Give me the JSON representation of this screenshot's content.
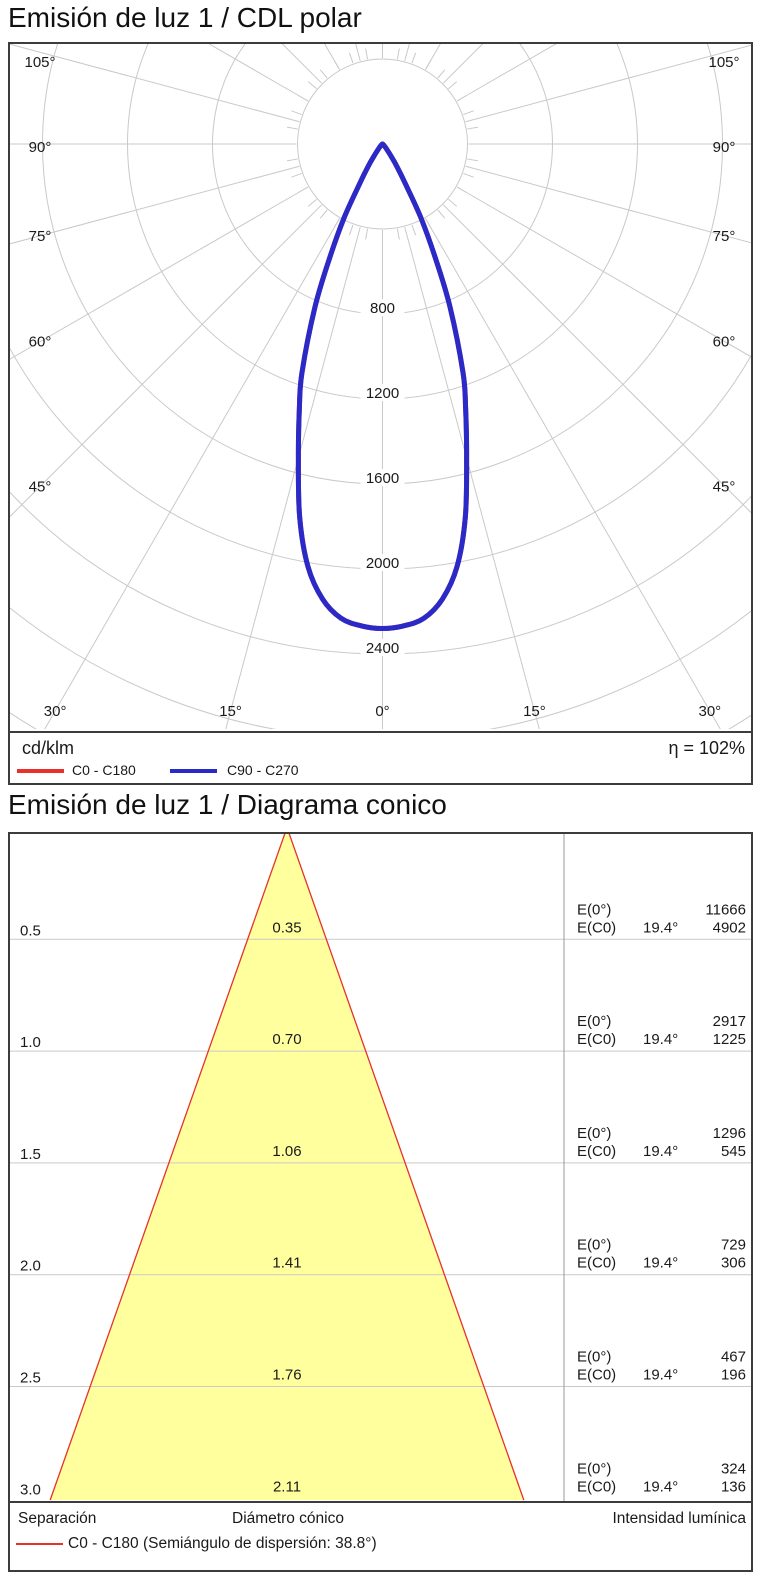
{
  "colors": {
    "c0_c180": "#e8312a",
    "c90_c270": "#2a2ac8",
    "cone_fill": "#ffff9e",
    "grid": "#c9c9c9",
    "border": "#3c3c3c",
    "text": "#1a1a1a"
  },
  "section1": {
    "title": "Emisión de luz 1 / CDL polar",
    "legend": {
      "unit": "cd/klm",
      "efficiency": "η = 102%",
      "series": [
        {
          "label": "C0 - C180",
          "color": "#e8312a"
        },
        {
          "label": "C90 - C270",
          "color": "#2a2ac8"
        }
      ]
    }
  },
  "section2": {
    "title": "Emisión de luz 1 / Diagrama conico",
    "footer": {
      "col_separation": "Separación",
      "col_diameter": "Diámetro cónico",
      "col_intensity": "Intensidad lumínica",
      "legend_label": "C0 - C180 (Semiángulo de dispersión: 38.8°)"
    }
  },
  "chart_data": [
    {
      "type": "line",
      "subtype": "polar-luminous-intensity",
      "title": "Emisión de luz 1 / CDL polar",
      "unit": "cd/klm",
      "efficiency_percent": 102,
      "ring_step_cd_klm": 400,
      "ring_labels": [
        800,
        1200,
        1600,
        2000,
        2400
      ],
      "angle_labels_side_deg": [
        105,
        90,
        75,
        60,
        45
      ],
      "angle_labels_bottom_deg": [
        30,
        15,
        0,
        15,
        30
      ],
      "spoke_step_deg": 15,
      "tick_step_deg": 10,
      "series": [
        {
          "name": "C0 - C180",
          "color": "#e8312a",
          "points_gamma_deg_vs_cd_klm": [
            [
              0,
              2280
            ],
            [
              2.5,
              2270
            ],
            [
              5,
              2240
            ],
            [
              7.5,
              2160
            ],
            [
              10,
              2020
            ],
            [
              12.5,
              1800
            ],
            [
              15,
              1530
            ],
            [
              17.5,
              1300
            ],
            [
              19.4,
              1140
            ],
            [
              22.5,
              830
            ],
            [
              25,
              580
            ],
            [
              27.5,
              390
            ],
            [
              30,
              215
            ],
            [
              32.5,
              130
            ],
            [
              35,
              75
            ],
            [
              40,
              28
            ],
            [
              45,
              12
            ],
            [
              50,
              6
            ],
            [
              60,
              2
            ],
            [
              75,
              1
            ],
            [
              90,
              0
            ]
          ]
        },
        {
          "name": "C90 - C270",
          "color": "#2a2ac8",
          "points_gamma_deg_vs_cd_klm": [
            [
              0,
              2280
            ],
            [
              2.5,
              2270
            ],
            [
              5,
              2240
            ],
            [
              7.5,
              2160
            ],
            [
              10,
              2020
            ],
            [
              12.5,
              1800
            ],
            [
              15,
              1530
            ],
            [
              17.5,
              1300
            ],
            [
              19.4,
              1140
            ],
            [
              22.5,
              830
            ],
            [
              25,
              580
            ],
            [
              27.5,
              390
            ],
            [
              30,
              215
            ],
            [
              32.5,
              130
            ],
            [
              35,
              75
            ],
            [
              40,
              28
            ],
            [
              45,
              12
            ],
            [
              50,
              6
            ],
            [
              60,
              2
            ],
            [
              75,
              1
            ],
            [
              90,
              0
            ]
          ]
        }
      ]
    },
    {
      "type": "area",
      "subtype": "cone-diagram",
      "title": "Emisión de luz 1 / Diagrama conico",
      "beam_half_angle_deg": 19.4,
      "full_beam_angle_deg": 38.8,
      "legend_label": "C0 - C180 (Semiángulo de dispersión: 38.8°)",
      "columns": {
        "separation": "Separación",
        "diameter": "Diámetro cónico",
        "intensity": "Intensidad lumínica"
      },
      "e_row_labels": {
        "line1": "E(0°)",
        "line2": "E(C0)",
        "angle": "19.4°"
      },
      "rows": [
        {
          "separation": "0.5",
          "diameter": "0.35",
          "e0": "11666",
          "ec0": "4902",
          "angle": "19.4°"
        },
        {
          "separation": "1.0",
          "diameter": "0.70",
          "e0": "2917",
          "ec0": "1225",
          "angle": "19.4°"
        },
        {
          "separation": "1.5",
          "diameter": "1.06",
          "e0": "1296",
          "ec0": "545",
          "angle": "19.4°"
        },
        {
          "separation": "2.0",
          "diameter": "1.41",
          "e0": "729",
          "ec0": "306",
          "angle": "19.4°"
        },
        {
          "separation": "2.5",
          "diameter": "1.76",
          "e0": "467",
          "ec0": "196",
          "angle": "19.4°"
        },
        {
          "separation": "3.0",
          "diameter": "2.11",
          "e0": "324",
          "ec0": "136",
          "angle": "19.4°"
        }
      ]
    }
  ]
}
